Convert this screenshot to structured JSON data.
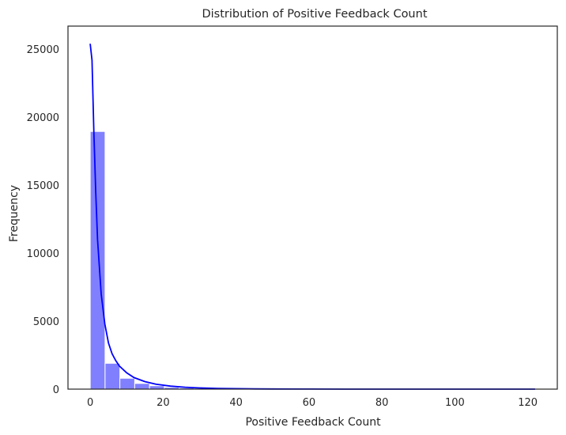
{
  "chart_data": {
    "type": "bar",
    "title": "Distribution of Positive Feedback Count",
    "xlabel": "Positive Feedback Count",
    "ylabel": "Frequency",
    "xlim": [
      -6.1,
      128.1
    ],
    "ylim": [
      0,
      26700
    ],
    "x_ticks": [
      0,
      20,
      40,
      60,
      80,
      100,
      120
    ],
    "y_ticks": [
      0,
      5000,
      10000,
      15000,
      20000,
      25000
    ],
    "bin_width": 4.07,
    "bins": [
      {
        "x0": 0.0,
        "count": 18950
      },
      {
        "x0": 4.07,
        "count": 1900
      },
      {
        "x0": 8.13,
        "count": 800
      },
      {
        "x0": 12.2,
        "count": 420
      },
      {
        "x0": 16.27,
        "count": 250
      },
      {
        "x0": 20.33,
        "count": 130
      },
      {
        "x0": 24.4,
        "count": 90
      },
      {
        "x0": 28.47,
        "count": 60
      },
      {
        "x0": 32.53,
        "count": 40
      },
      {
        "x0": 36.6,
        "count": 25
      },
      {
        "x0": 40.67,
        "count": 15
      },
      {
        "x0": 44.73,
        "count": 8
      },
      {
        "x0": 48.8,
        "count": 5
      },
      {
        "x0": 52.87,
        "count": 3
      },
      {
        "x0": 56.93,
        "count": 2
      },
      {
        "x0": 61.0,
        "count": 2
      },
      {
        "x0": 65.07,
        "count": 1
      },
      {
        "x0": 69.13,
        "count": 1
      },
      {
        "x0": 73.2,
        "count": 1
      },
      {
        "x0": 77.27,
        "count": 0
      },
      {
        "x0": 81.33,
        "count": 0
      },
      {
        "x0": 85.4,
        "count": 0
      },
      {
        "x0": 89.47,
        "count": 0
      },
      {
        "x0": 93.53,
        "count": 0
      },
      {
        "x0": 97.6,
        "count": 0
      },
      {
        "x0": 101.67,
        "count": 0
      },
      {
        "x0": 105.73,
        "count": 0
      },
      {
        "x0": 109.8,
        "count": 0
      },
      {
        "x0": 113.87,
        "count": 0
      },
      {
        "x0": 117.93,
        "count": 1
      }
    ],
    "kde": [
      [
        0,
        25400
      ],
      [
        0.5,
        24200
      ],
      [
        1,
        19000
      ],
      [
        1.5,
        14500
      ],
      [
        2,
        11000
      ],
      [
        3,
        7000
      ],
      [
        4,
        4800
      ],
      [
        5,
        3400
      ],
      [
        6,
        2600
      ],
      [
        7,
        2100
      ],
      [
        8,
        1700
      ],
      [
        10,
        1200
      ],
      [
        12,
        850
      ],
      [
        15,
        550
      ],
      [
        18,
        360
      ],
      [
        22,
        220
      ],
      [
        26,
        140
      ],
      [
        30,
        90
      ],
      [
        35,
        55
      ],
      [
        40,
        35
      ],
      [
        45,
        20
      ],
      [
        50,
        12
      ],
      [
        60,
        5
      ],
      [
        70,
        2
      ],
      [
        80,
        1
      ],
      [
        90,
        0
      ],
      [
        100,
        0
      ],
      [
        110,
        0
      ],
      [
        122,
        0
      ]
    ],
    "bar_color": "#8080ff",
    "kde_color": "#0000ff"
  }
}
